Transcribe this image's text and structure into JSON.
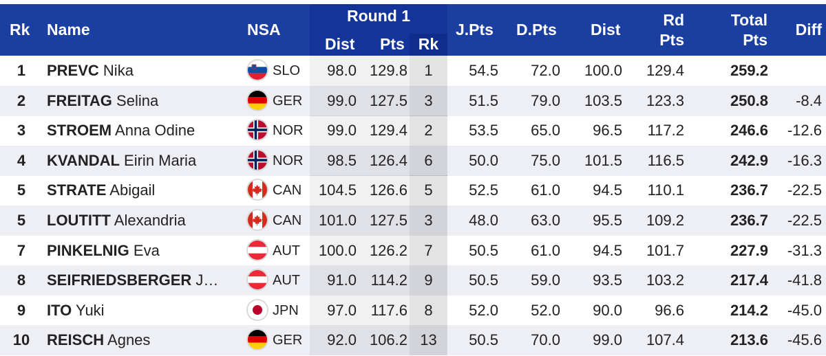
{
  "header": {
    "rk": "Rk",
    "name": "Name",
    "nsa": "NSA",
    "round": "Round 1",
    "dist": "Dist",
    "pts": "Pts",
    "round_rk": "Rk",
    "jpts": "J.Pts",
    "dpts": "D.Pts",
    "dist2": "Dist",
    "rd": "Rd",
    "rd_pts": "Pts",
    "total": "Total",
    "total_pts": "Pts",
    "diff": "Diff"
  },
  "rows": [
    {
      "rank": "1",
      "last": "PREVC",
      "first": "Nika",
      "flag": "slo-flag",
      "nsa": "SLO",
      "dist": "98.0",
      "pts": "129.8",
      "rrk": "1",
      "jpts": "54.5",
      "dpts": "72.0",
      "dist2": "100.0",
      "rdpts": "129.4",
      "total": "259.2",
      "diff": ""
    },
    {
      "rank": "2",
      "last": "FREITAG",
      "first": "Selina",
      "flag": "ger-flag",
      "nsa": "GER",
      "dist": "99.0",
      "pts": "127.5",
      "rrk": "3",
      "jpts": "51.5",
      "dpts": "79.0",
      "dist2": "103.5",
      "rdpts": "123.3",
      "total": "250.8",
      "diff": "-8.4"
    },
    {
      "rank": "3",
      "last": "STROEM",
      "first": "Anna Odine",
      "flag": "nor-flag",
      "nsa": "NOR",
      "dist": "99.0",
      "pts": "129.4",
      "rrk": "2",
      "jpts": "53.5",
      "dpts": "65.0",
      "dist2": "96.5",
      "rdpts": "117.2",
      "total": "246.6",
      "diff": "-12.6"
    },
    {
      "rank": "4",
      "last": "KVANDAL",
      "first": "Eirin Maria",
      "flag": "nor-flag",
      "nsa": "NOR",
      "dist": "98.5",
      "pts": "126.4",
      "rrk": "6",
      "jpts": "50.0",
      "dpts": "75.0",
      "dist2": "101.5",
      "rdpts": "116.5",
      "total": "242.9",
      "diff": "-16.3"
    },
    {
      "rank": "5",
      "last": "STRATE",
      "first": "Abigail",
      "flag": "can-flag",
      "nsa": "CAN",
      "dist": "104.5",
      "pts": "126.6",
      "rrk": "5",
      "jpts": "52.5",
      "dpts": "61.0",
      "dist2": "94.5",
      "rdpts": "110.1",
      "total": "236.7",
      "diff": "-22.5"
    },
    {
      "rank": "5",
      "last": "LOUTITT",
      "first": "Alexandria",
      "flag": "can-flag",
      "nsa": "CAN",
      "dist": "101.0",
      "pts": "127.5",
      "rrk": "3",
      "jpts": "48.0",
      "dpts": "63.0",
      "dist2": "95.5",
      "rdpts": "109.2",
      "total": "236.7",
      "diff": "-22.5"
    },
    {
      "rank": "7",
      "last": "PINKELNIG",
      "first": "Eva",
      "flag": "aut-flag",
      "nsa": "AUT",
      "dist": "100.0",
      "pts": "126.2",
      "rrk": "7",
      "jpts": "50.5",
      "dpts": "61.0",
      "dist2": "94.5",
      "rdpts": "101.7",
      "total": "227.9",
      "diff": "-31.3"
    },
    {
      "rank": "8",
      "last": "SEIFRIEDSBERGER",
      "first": "J…",
      "flag": "aut-flag",
      "nsa": "AUT",
      "dist": "91.0",
      "pts": "114.2",
      "rrk": "9",
      "jpts": "50.5",
      "dpts": "59.0",
      "dist2": "93.5",
      "rdpts": "103.2",
      "total": "217.4",
      "diff": "-41.8"
    },
    {
      "rank": "9",
      "last": "ITO",
      "first": "Yuki",
      "flag": "jpn-flag",
      "nsa": "JPN",
      "dist": "97.0",
      "pts": "117.6",
      "rrk": "8",
      "jpts": "52.0",
      "dpts": "52.0",
      "dist2": "90.0",
      "rdpts": "96.6",
      "total": "214.2",
      "diff": "-45.0"
    },
    {
      "rank": "10",
      "last": "REISCH",
      "first": "Agnes",
      "flag": "ger-flag",
      "nsa": "GER",
      "dist": "92.0",
      "pts": "106.2",
      "rrk": "13",
      "jpts": "50.5",
      "dpts": "70.0",
      "dist2": "99.0",
      "rdpts": "107.4",
      "total": "213.6",
      "diff": "-45.6"
    }
  ],
  "colors": {
    "header_bg": "#1b3fa0",
    "header_text": "#ffffff",
    "row_alt_bg": "#eeeff4",
    "text": "#222222"
  }
}
